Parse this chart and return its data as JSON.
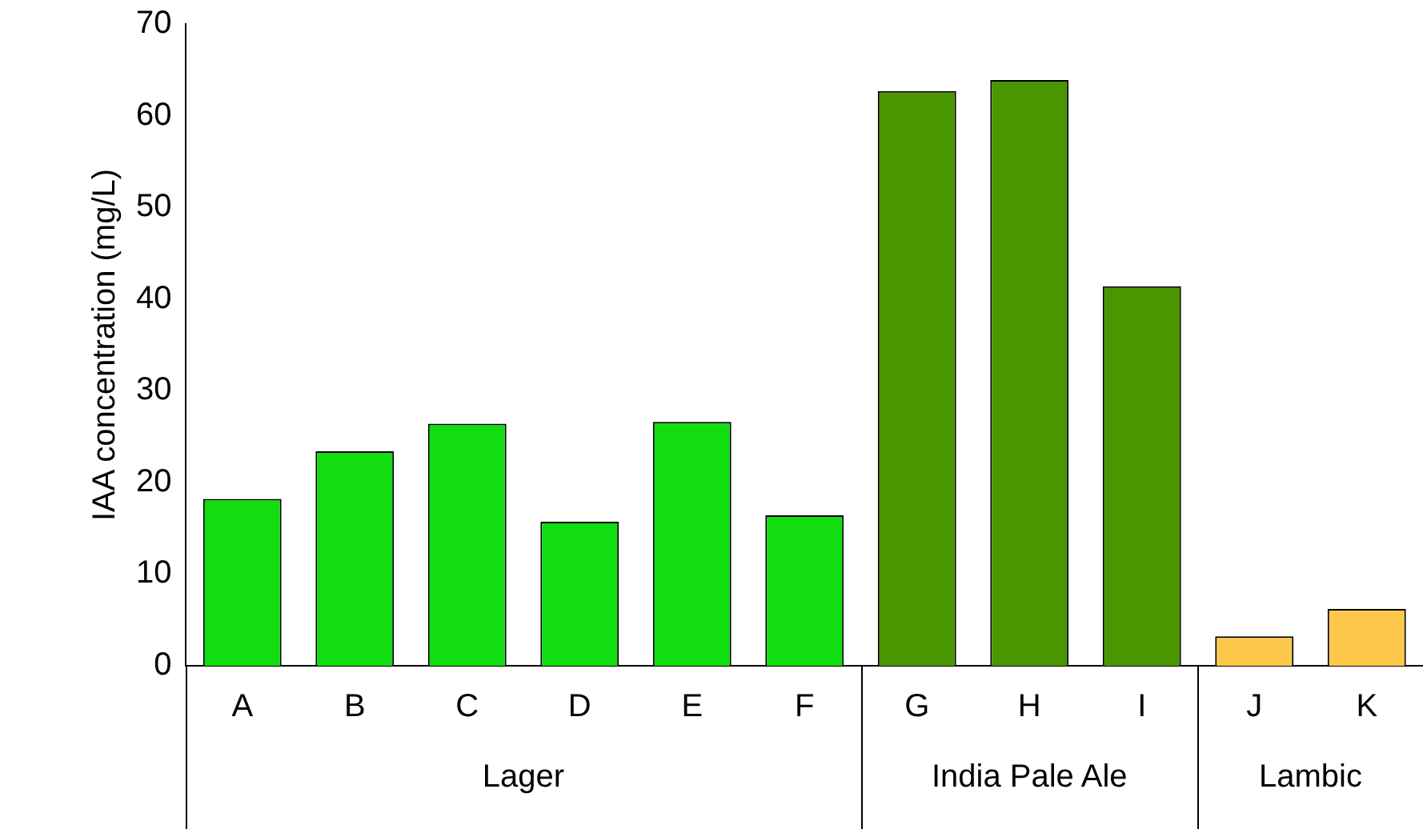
{
  "chart_data": {
    "type": "bar",
    "ylabel": "IAA concentration (mg/L)",
    "categories": [
      "A",
      "B",
      "C",
      "D",
      "E",
      "F",
      "G",
      "H",
      "I",
      "J",
      "K"
    ],
    "series": [
      {
        "name": "Lager",
        "color": "#11dd11",
        "values": [
          18.2,
          23.4,
          26.4,
          15.7,
          26.6,
          16.4,
          null,
          null,
          null,
          null,
          null
        ]
      },
      {
        "name": "India Pale Ale",
        "color": "#4a9600",
        "values": [
          null,
          null,
          null,
          null,
          null,
          null,
          62.7,
          63.9,
          41.4,
          null,
          null
        ]
      },
      {
        "name": "Lambic",
        "color": "#fdc84a",
        "values": [
          null,
          null,
          null,
          null,
          null,
          null,
          null,
          null,
          null,
          3.2,
          6.2
        ]
      }
    ],
    "ylim": [
      0,
      70
    ],
    "yticks": [
      0,
      10,
      20,
      30,
      40,
      50,
      60,
      70
    ],
    "grid": false,
    "legend": false
  }
}
